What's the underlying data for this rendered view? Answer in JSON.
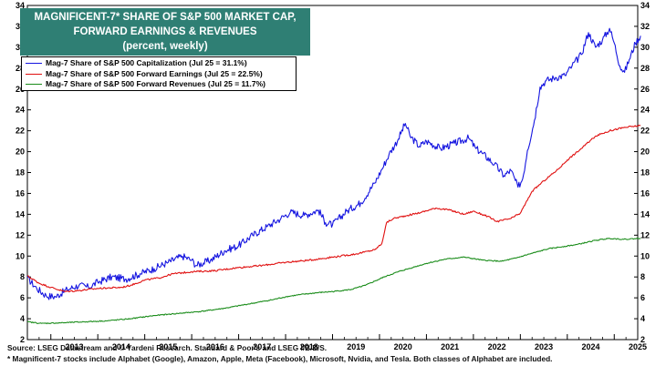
{
  "title": {
    "line1": "MAGNIFICENT-7* SHARE OF S&P 500 MARKET CAP,",
    "line2": "FORWARD EARNINGS & REVENUES",
    "line3": "(percent, weekly)"
  },
  "footnotes": {
    "source": "Source: LSEG Datastream and © Yardeni Research. Standard & Poor's and LSEG I/B/E/S.",
    "note": "* Magnificent-7 stocks include Alphabet (Google), Amazon, Apple, Meta (Facebook), Microsoft, Nvidia, and Tesla. Both classes of Alphabet are included."
  },
  "chart_data": {
    "type": "line",
    "xlim": [
      2012.5,
      2025.5
    ],
    "ylim": [
      2,
      34
    ],
    "yticks": [
      2,
      4,
      6,
      8,
      10,
      12,
      14,
      16,
      18,
      20,
      22,
      24,
      26,
      28,
      30,
      32,
      34
    ],
    "xtick_labels": [
      "2013",
      "2014",
      "2015",
      "2016",
      "2017",
      "2018",
      "2019",
      "2020",
      "2021",
      "2022",
      "2023",
      "2024",
      "2025"
    ],
    "xtick_positions": [
      2013,
      2014,
      2015,
      2016,
      2017,
      2018,
      2019,
      2020,
      2021,
      2022,
      2023,
      2024,
      2025
    ],
    "grid": false,
    "legend_position": "top-left",
    "series": [
      {
        "name": "Mag-7 Share of S&P 500 Capitalization (Jul 25 = 31.1%)",
        "color": "#1515e0",
        "noise": 0.35,
        "points": [
          [
            2012.5,
            7.9
          ],
          [
            2012.7,
            6.9
          ],
          [
            2012.9,
            6.2
          ],
          [
            2013.1,
            6.1
          ],
          [
            2013.35,
            6.8
          ],
          [
            2013.6,
            7.2
          ],
          [
            2013.8,
            7.0
          ],
          [
            2014.0,
            7.5
          ],
          [
            2014.3,
            8.0
          ],
          [
            2014.6,
            7.8
          ],
          [
            2014.9,
            8.3
          ],
          [
            2015.2,
            8.8
          ],
          [
            2015.5,
            9.4
          ],
          [
            2015.8,
            10.0
          ],
          [
            2016.0,
            9.6
          ],
          [
            2016.1,
            9.1
          ],
          [
            2016.4,
            9.6
          ],
          [
            2016.7,
            10.5
          ],
          [
            2017.0,
            11.0
          ],
          [
            2017.3,
            12.0
          ],
          [
            2017.6,
            12.8
          ],
          [
            2017.9,
            13.6
          ],
          [
            2018.1,
            14.2
          ],
          [
            2018.4,
            13.9
          ],
          [
            2018.7,
            14.4
          ],
          [
            2018.85,
            13.2
          ],
          [
            2019.0,
            13.0
          ],
          [
            2019.3,
            14.3
          ],
          [
            2019.6,
            15.1
          ],
          [
            2019.9,
            17.0
          ],
          [
            2020.05,
            18.3
          ],
          [
            2020.2,
            19.7
          ],
          [
            2020.4,
            21.2
          ],
          [
            2020.55,
            22.7
          ],
          [
            2020.65,
            21.5
          ],
          [
            2020.85,
            20.5
          ],
          [
            2021.0,
            21.0
          ],
          [
            2021.3,
            20.3
          ],
          [
            2021.6,
            20.8
          ],
          [
            2021.9,
            21.3
          ],
          [
            2022.05,
            20.3
          ],
          [
            2022.2,
            19.8
          ],
          [
            2022.45,
            18.8
          ],
          [
            2022.65,
            17.7
          ],
          [
            2022.8,
            18.2
          ],
          [
            2022.95,
            16.6
          ],
          [
            2023.05,
            17.4
          ],
          [
            2023.15,
            20.1
          ],
          [
            2023.3,
            23.0
          ],
          [
            2023.42,
            26.2
          ],
          [
            2023.55,
            26.8
          ],
          [
            2023.75,
            27.1
          ],
          [
            2023.95,
            27.3
          ],
          [
            2024.1,
            28.2
          ],
          [
            2024.3,
            29.3
          ],
          [
            2024.45,
            31.4
          ],
          [
            2024.6,
            30.0
          ],
          [
            2024.75,
            30.7
          ],
          [
            2024.9,
            31.8
          ],
          [
            2025.0,
            30.4
          ],
          [
            2025.12,
            28.2
          ],
          [
            2025.22,
            27.6
          ],
          [
            2025.32,
            28.8
          ],
          [
            2025.45,
            30.4
          ],
          [
            2025.56,
            31.1
          ]
        ]
      },
      {
        "name": "Mag-7 Share of S&P 500 Forward Earnings (Jul 25 = 22.5%)",
        "color": "#e01010",
        "noise": 0.08,
        "points": [
          [
            2012.5,
            8.1
          ],
          [
            2012.75,
            7.4
          ],
          [
            2013.0,
            7.0
          ],
          [
            2013.3,
            6.6
          ],
          [
            2013.6,
            6.7
          ],
          [
            2014.0,
            6.9
          ],
          [
            2014.5,
            7.0
          ],
          [
            2014.7,
            7.2
          ],
          [
            2015.0,
            7.7
          ],
          [
            2015.3,
            7.9
          ],
          [
            2015.6,
            8.3
          ],
          [
            2016.0,
            8.5
          ],
          [
            2016.5,
            8.6
          ],
          [
            2017.0,
            8.9
          ],
          [
            2017.5,
            9.1
          ],
          [
            2018.0,
            9.4
          ],
          [
            2018.5,
            9.6
          ],
          [
            2019.0,
            9.9
          ],
          [
            2019.5,
            10.2
          ],
          [
            2019.9,
            10.6
          ],
          [
            2020.05,
            11.2
          ],
          [
            2020.15,
            13.2
          ],
          [
            2020.3,
            13.6
          ],
          [
            2020.6,
            13.9
          ],
          [
            2020.9,
            14.2
          ],
          [
            2021.2,
            14.6
          ],
          [
            2021.5,
            14.4
          ],
          [
            2021.8,
            14.0
          ],
          [
            2022.0,
            14.3
          ],
          [
            2022.3,
            13.8
          ],
          [
            2022.5,
            13.3
          ],
          [
            2022.8,
            13.6
          ],
          [
            2023.0,
            14.1
          ],
          [
            2023.25,
            16.2
          ],
          [
            2023.5,
            17.2
          ],
          [
            2023.8,
            18.3
          ],
          [
            2024.0,
            19.2
          ],
          [
            2024.3,
            20.3
          ],
          [
            2024.6,
            21.5
          ],
          [
            2024.9,
            22.0
          ],
          [
            2025.2,
            22.3
          ],
          [
            2025.56,
            22.5
          ]
        ]
      },
      {
        "name": "Mag-7 Share of S&P 500 Forward Revenues (Jul 25 = 11.7%)",
        "color": "#1a8c1a",
        "noise": 0.05,
        "points": [
          [
            2012.5,
            3.7
          ],
          [
            2012.8,
            3.55
          ],
          [
            2013.2,
            3.6
          ],
          [
            2013.7,
            3.7
          ],
          [
            2014.2,
            3.8
          ],
          [
            2014.7,
            4.0
          ],
          [
            2015.2,
            4.3
          ],
          [
            2015.7,
            4.5
          ],
          [
            2016.2,
            4.7
          ],
          [
            2016.7,
            5.0
          ],
          [
            2017.2,
            5.4
          ],
          [
            2017.7,
            5.8
          ],
          [
            2018.0,
            6.1
          ],
          [
            2018.3,
            6.3
          ],
          [
            2018.7,
            6.5
          ],
          [
            2019.0,
            6.6
          ],
          [
            2019.4,
            6.8
          ],
          [
            2019.7,
            7.2
          ],
          [
            2019.9,
            7.6
          ],
          [
            2020.1,
            8.0
          ],
          [
            2020.4,
            8.5
          ],
          [
            2020.7,
            8.9
          ],
          [
            2021.0,
            9.3
          ],
          [
            2021.4,
            9.7
          ],
          [
            2021.8,
            9.9
          ],
          [
            2022.2,
            9.6
          ],
          [
            2022.6,
            9.5
          ],
          [
            2022.9,
            9.8
          ],
          [
            2023.2,
            10.2
          ],
          [
            2023.6,
            10.7
          ],
          [
            2023.9,
            10.9
          ],
          [
            2024.2,
            11.1
          ],
          [
            2024.6,
            11.5
          ],
          [
            2024.9,
            11.7
          ],
          [
            2025.2,
            11.6
          ],
          [
            2025.56,
            11.7
          ]
        ]
      }
    ]
  }
}
